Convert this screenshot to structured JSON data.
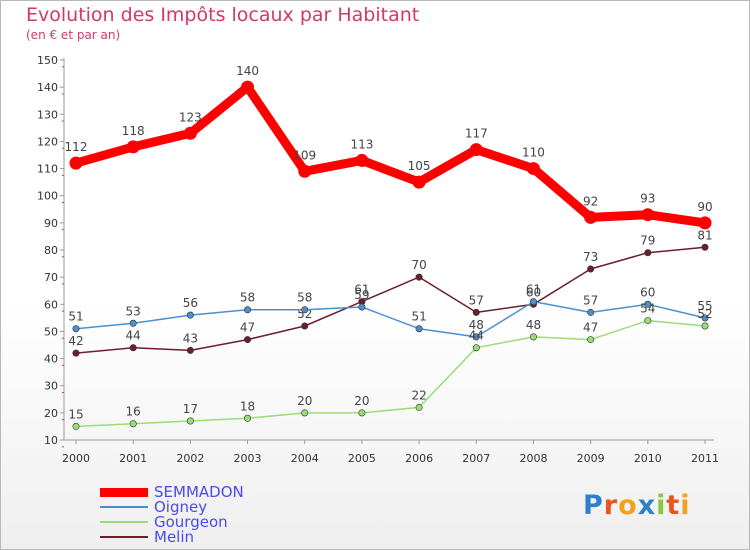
{
  "title": "Evolution des Impôts locaux par Habitant",
  "subtitle": "(en € et par an)",
  "logo": {
    "letters": [
      "P",
      "r",
      "o",
      "x",
      "i",
      "t",
      "i"
    ],
    "colors": [
      "#2f80c8",
      "#e8551c",
      "#f2a11d",
      "#2f80c8",
      "#8cc63f",
      "#e8551c",
      "#f2a11d"
    ]
  },
  "chart_data": {
    "type": "line",
    "title": "Evolution des Impôts locaux par Habitant",
    "subtitle": "(en € et par an)",
    "x": [
      "2000",
      "2001",
      "2002",
      "2003",
      "2004",
      "2005",
      "2006",
      "2007",
      "2008",
      "2009",
      "2010",
      "2011"
    ],
    "ylim": [
      10,
      150
    ],
    "yticks": [
      10,
      20,
      30,
      40,
      50,
      60,
      70,
      80,
      90,
      100,
      110,
      120,
      130,
      140,
      150
    ],
    "grid": false,
    "legend_position": "bottom-left",
    "series": [
      {
        "name": "SEMMADON",
        "color": "#ff0000",
        "values": [
          112,
          118,
          123,
          140,
          109,
          113,
          105,
          117,
          110,
          92,
          93,
          90
        ]
      },
      {
        "name": "Oigney",
        "color": "#4d8fcc",
        "values": [
          51,
          53,
          56,
          58,
          58,
          59,
          51,
          48,
          61,
          57,
          60,
          55
        ]
      },
      {
        "name": "Gourgeon",
        "color": "#99dd77",
        "values": [
          15,
          16,
          17,
          18,
          20,
          20,
          22,
          44,
          48,
          47,
          54,
          52
        ]
      },
      {
        "name": "Melin",
        "color": "#6b1f2a",
        "values": [
          42,
          44,
          43,
          47,
          52,
          61,
          70,
          57,
          60,
          73,
          79,
          81
        ]
      }
    ]
  }
}
